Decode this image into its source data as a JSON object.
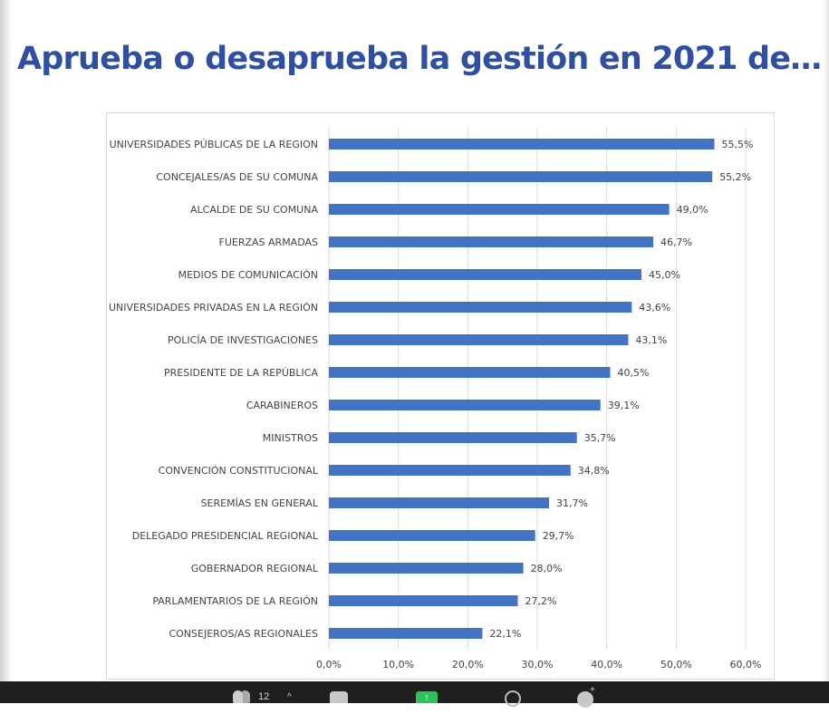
{
  "slide": {
    "title": "Aprueba o desaprueba la gestión en 2021 de…"
  },
  "chart_data": {
    "type": "bar",
    "orientation": "horizontal",
    "categories": [
      "UNIVERSIDADES PÚBLICAS DE LA REGION",
      "CONCEJALES/AS DE SU COMUNA",
      "ALCALDE DE SU COMUNA",
      "FUERZAS ARMADAS",
      "MEDIOS DE COMUNICACIÓN",
      "UNIVERSIDADES PRIVADAS EN LA REGIÓN",
      "POLICÍA DE INVESTIGACIONES",
      "PRESIDENTE DE LA REPÚBLICA",
      "CARABINEROS",
      "MINISTROS",
      "CONVENCIÓN CONSTITUCIONAL",
      "SEREMÍAS EN GENERAL",
      "DELEGADO PRESIDENCIAL REGIONAL",
      "GOBERNADOR REGIONAL",
      "PARLAMENTARIOS DE LA REGIÓN",
      "CONSEJEROS/AS REGIONALES"
    ],
    "values": [
      55.5,
      55.2,
      49.0,
      46.7,
      45.0,
      43.6,
      43.1,
      40.5,
      39.1,
      35.7,
      34.8,
      31.7,
      29.7,
      28.0,
      27.2,
      22.1
    ],
    "data_labels": [
      "55,5%",
      "55,2%",
      "49,0%",
      "46,7%",
      "45,0%",
      "43,6%",
      "43,1%",
      "40,5%",
      "39,1%",
      "35,7%",
      "34,8%",
      "31,7%",
      "29,7%",
      "28,0%",
      "27,2%",
      "22,1%"
    ],
    "x_ticks": [
      0,
      10,
      20,
      30,
      40,
      50,
      60
    ],
    "x_tick_labels": [
      "0,0%",
      "10,0%",
      "20,0%",
      "30,0%",
      "40,0%",
      "50,0%",
      "60,0%"
    ],
    "xlim": [
      0,
      60
    ],
    "grid": "vertical",
    "bar_color": "#4472c4"
  },
  "taskbar": {
    "participants_count": "12",
    "caret": "^",
    "share_symbol": "↑",
    "reaction_plus": "+",
    "icons": [
      "participants-icon",
      "chat-icon",
      "share-screen-icon",
      "record-icon",
      "reactions-icon"
    ]
  }
}
